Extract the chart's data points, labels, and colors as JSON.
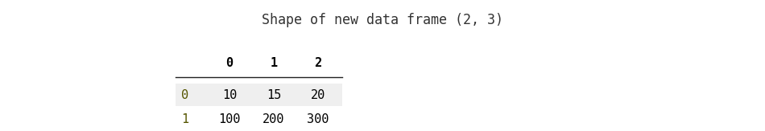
{
  "title": "Shape of new data frame (2, 3)",
  "title_fontsize": 12,
  "title_color": "#333333",
  "title_font": "monospace",
  "background_color": "#ffffff",
  "col_headers": [
    "0",
    "1",
    "2"
  ],
  "row_headers": [
    "0",
    "1"
  ],
  "table_data": [
    [
      "10",
      "15",
      "20"
    ],
    [
      "100",
      "200",
      "300"
    ]
  ],
  "col_header_color": "#000000",
  "row_header_color": "#555500",
  "data_color": "#000000",
  "row0_bg": "#efefef",
  "row1_bg": "#ffffff",
  "font": "monospace",
  "fontsize": 11,
  "fig_width": 9.5,
  "fig_height": 1.63,
  "dpi": 100
}
